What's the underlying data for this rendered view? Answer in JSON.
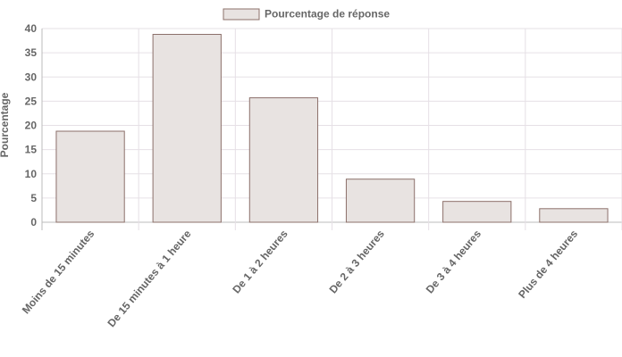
{
  "chart_data": {
    "type": "bar",
    "categories": [
      "Moins de 15 minutes",
      "De 15 minutes à 1 heure",
      "De 1 à 2 heures",
      "De 2 à 3 heures",
      "De 3 à 4 heures",
      "Plus de 4 heures"
    ],
    "series": [
      {
        "name": "Pourcentage de réponse",
        "values": [
          18.8,
          38.8,
          25.7,
          8.9,
          4.3,
          2.8
        ]
      }
    ],
    "xlabel": "",
    "ylabel": "Pourcentage",
    "ylim": [
      0,
      40
    ],
    "yticks": [
      "0",
      "5",
      "10",
      "15",
      "20",
      "25",
      "30",
      "35",
      "40"
    ],
    "grid": true,
    "legend_position": "top-center",
    "colors": {
      "bar_fill": "#e8e3e1",
      "bar_stroke": "#8c706a",
      "grid": "#e6e0e6",
      "text": "#666666"
    }
  }
}
